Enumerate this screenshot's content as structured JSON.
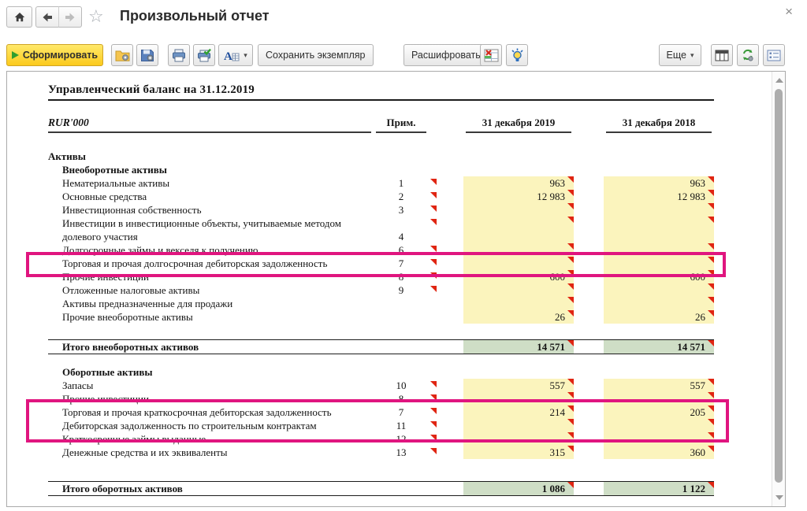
{
  "window": {
    "title": "Произвольный отчет",
    "close_glyph": "×",
    "star_glyph": "☆"
  },
  "toolbar": {
    "generate": "Сформировать",
    "save_instance": "Сохранить экземпляр",
    "decipher": "Расшифровать",
    "more": "Еще",
    "caret_glyph": "▾"
  },
  "colors": {
    "generate_button": "#FCCA1C",
    "highlight_box": "#E0157F",
    "cell_yellow": "#FBF4BD",
    "cell_green": "#CFDEC6",
    "marker_red": "#E02512"
  },
  "report": {
    "title": "Управленческий баланс на 31.12.2019",
    "unit": "RUR'000",
    "columns": {
      "note": "Прим.",
      "y2019": "31 декабря 2019",
      "y2018": "31 декабря 2018"
    },
    "rows": [
      {
        "type": "sec0",
        "label": "Активы"
      },
      {
        "type": "sec1",
        "label": "Внеоборотные активы"
      },
      {
        "type": "item",
        "label": "Нематериальные активы",
        "note": "1",
        "marker": true,
        "yellow": true,
        "v1": "963",
        "v2": "963",
        "c1": true,
        "c2": true
      },
      {
        "type": "item",
        "label": "Основные средства",
        "note": "2",
        "marker": true,
        "yellow": true,
        "v1": "12 983",
        "v2": "12 983",
        "c1": true,
        "c2": true
      },
      {
        "type": "item",
        "label": "Инвестиционная собственность",
        "note": "3",
        "marker": true,
        "yellow": true,
        "v1": "",
        "v2": "",
        "c1": true,
        "c2": true
      },
      {
        "type": "item",
        "label": "Инвестиции в инвестиционные объекты, учитываемые методом",
        "note": "",
        "marker": true,
        "yellow": true,
        "v1": "",
        "v2": "",
        "c1": true,
        "c2": true
      },
      {
        "type": "item",
        "label": "долевого участия",
        "note": "4",
        "yellow": true,
        "v1": "",
        "v2": ""
      },
      {
        "type": "item",
        "label": "Долгосрочные займы и векселя к получению",
        "note": "6",
        "marker": true,
        "yellow": true,
        "v1": "",
        "v2": "",
        "c1": true,
        "c2": true
      },
      {
        "type": "item",
        "label": "Торговая и прочая долгосрочная дебиторская задолженность",
        "note": "7",
        "marker": true,
        "yellow": true,
        "v1": "",
        "v2": "",
        "c1": true,
        "c2": true
      },
      {
        "type": "item",
        "label": "Прочие инвестиции",
        "note": "8",
        "marker": true,
        "yellow": true,
        "v1": "600",
        "v2": "600",
        "c1": true,
        "c2": true
      },
      {
        "type": "item",
        "label": "Отложенные налоговые активы",
        "note": "9",
        "marker": true,
        "yellow": true,
        "v1": "",
        "v2": "",
        "c1": true,
        "c2": true
      },
      {
        "type": "item",
        "label": "Активы предназначенные для продажи",
        "yellow": true,
        "v1": "",
        "v2": "",
        "c1": true,
        "c2": true
      },
      {
        "type": "item",
        "label": "Прочие внеоборотные активы",
        "yellow": true,
        "v1": "26",
        "v2": "26",
        "c1": true,
        "c2": true
      },
      {
        "type": "gap",
        "h": 20
      },
      {
        "type": "total",
        "label": "Итого внеоборотных активов",
        "v1": "14 571",
        "v2": "14 571",
        "c1": true,
        "c2": true
      },
      {
        "type": "gap",
        "h": 14
      },
      {
        "type": "sec1",
        "label": "Оборотные активы"
      },
      {
        "type": "item",
        "label": "Запасы",
        "note": "10",
        "marker": true,
        "yellow": true,
        "v1": "557",
        "v2": "557",
        "c1": true,
        "c2": true
      },
      {
        "type": "item",
        "label": "Прочие инвестиции",
        "note": "8",
        "marker": true,
        "yellow": true,
        "v1": "",
        "v2": "",
        "c1": true,
        "c2": true
      },
      {
        "type": "item",
        "label": "Торговая и прочая краткосрочная дебиторская задолженность",
        "note": "7",
        "marker": true,
        "yellow": true,
        "v1": "214",
        "v2": "205",
        "c1": true,
        "c2": true
      },
      {
        "type": "item",
        "label": "Дебиторская задолженность по строительным контрактам",
        "note": "11",
        "marker": true,
        "yellow": true,
        "v1": "",
        "v2": "",
        "c1": true,
        "c2": true
      },
      {
        "type": "item",
        "label": "Краткосрочные займы выданные",
        "note": "12",
        "marker": true,
        "yellow": true,
        "v1": "",
        "v2": "",
        "c1": true,
        "c2": true
      },
      {
        "type": "item",
        "label": "Денежные средства и их эквиваленты",
        "note": "13",
        "marker": true,
        "yellow": true,
        "v1": "315",
        "v2": "360",
        "c1": true,
        "c2": true
      },
      {
        "type": "gap",
        "h": 28
      },
      {
        "type": "total",
        "label": "Итого оборотных активов",
        "v1": "1 086",
        "v2": "1 122",
        "c1": true,
        "c2": true
      }
    ]
  }
}
